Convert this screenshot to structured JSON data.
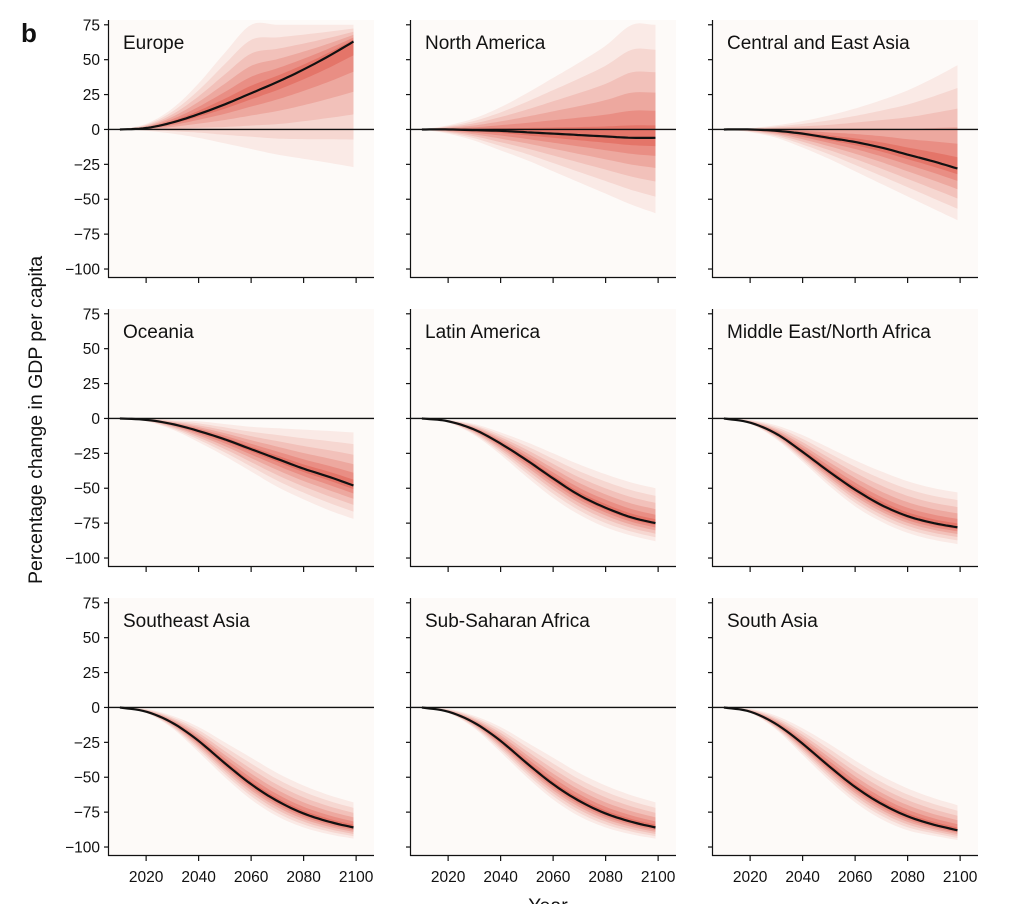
{
  "figure": {
    "panel_letter": "b",
    "ylabel": "Percentage change in GDP per capita",
    "xlabel": "Year"
  },
  "colors": {
    "band": "#d7301f",
    "median": "#111111",
    "panel_bg": "#fdfaf8",
    "zero_line": "#111111"
  },
  "chart_data": [
    {
      "type": "area",
      "title": "Europe",
      "x": [
        2010,
        2020,
        2030,
        2040,
        2050,
        2060,
        2070,
        2080,
        2090,
        2099
      ],
      "series": [
        {
          "role": "median",
          "values": [
            0,
            1,
            5,
            11,
            18,
            26,
            34,
            43,
            53,
            63
          ]
        },
        {
          "role": "lower",
          "values": [
            0,
            -1,
            -3,
            -6,
            -10,
            -14,
            -18,
            -21,
            -24,
            -27
          ]
        },
        {
          "role": "upper",
          "values": [
            0,
            4,
            15,
            33,
            55,
            75,
            75,
            75,
            75,
            75
          ]
        }
      ],
      "xlim": [
        2007,
        2103
      ],
      "ylim": [
        -105,
        77
      ],
      "xticks": [
        2020,
        2040,
        2060,
        2080,
        2100
      ],
      "yticks": [
        75,
        50,
        25,
        0,
        -25,
        -50,
        -75,
        -100
      ],
      "grid": false
    },
    {
      "type": "area",
      "title": "North America",
      "x": [
        2010,
        2020,
        2030,
        2040,
        2050,
        2060,
        2070,
        2080,
        2090,
        2099
      ],
      "series": [
        {
          "role": "median",
          "values": [
            0,
            0,
            -0.5,
            -1,
            -2,
            -3,
            -4,
            -5,
            -6,
            -6
          ]
        },
        {
          "role": "lower",
          "values": [
            0,
            -3,
            -8,
            -15,
            -22,
            -30,
            -38,
            -46,
            -54,
            -60
          ]
        },
        {
          "role": "upper",
          "values": [
            0,
            3,
            8,
            16,
            26,
            37,
            48,
            60,
            75,
            75
          ]
        }
      ],
      "xlim": [
        2007,
        2103
      ],
      "ylim": [
        -105,
        77
      ],
      "xticks": [
        2020,
        2040,
        2060,
        2080,
        2100
      ],
      "yticks": [
        75,
        50,
        25,
        0,
        -25,
        -50,
        -75,
        -100
      ],
      "grid": false
    },
    {
      "type": "area",
      "title": "Central and East Asia",
      "x": [
        2010,
        2020,
        2030,
        2040,
        2050,
        2060,
        2070,
        2080,
        2090,
        2099
      ],
      "series": [
        {
          "role": "median",
          "values": [
            0,
            0,
            -1,
            -3,
            -6,
            -9,
            -13,
            -18,
            -23,
            -28
          ]
        },
        {
          "role": "lower",
          "values": [
            0,
            -2,
            -6,
            -13,
            -21,
            -30,
            -39,
            -48,
            -57,
            -65
          ]
        },
        {
          "role": "upper",
          "values": [
            0,
            1,
            3,
            6,
            10,
            15,
            21,
            28,
            37,
            46
          ]
        }
      ],
      "xlim": [
        2007,
        2103
      ],
      "ylim": [
        -105,
        77
      ],
      "xticks": [
        2020,
        2040,
        2060,
        2080,
        2100
      ],
      "yticks": [
        75,
        50,
        25,
        0,
        -25,
        -50,
        -75,
        -100
      ],
      "grid": false
    },
    {
      "type": "area",
      "title": "Oceania",
      "x": [
        2010,
        2020,
        2030,
        2040,
        2050,
        2060,
        2070,
        2080,
        2090,
        2099
      ],
      "series": [
        {
          "role": "median",
          "values": [
            0,
            -1,
            -4,
            -9,
            -15,
            -22,
            -29,
            -36,
            -42,
            -48
          ]
        },
        {
          "role": "lower",
          "values": [
            0,
            -2,
            -8,
            -17,
            -27,
            -38,
            -49,
            -58,
            -66,
            -72
          ]
        },
        {
          "role": "upper",
          "values": [
            0,
            0,
            -1,
            -2,
            -4,
            -6,
            -7,
            -8,
            -9,
            -10
          ]
        }
      ],
      "xlim": [
        2007,
        2103
      ],
      "ylim": [
        -105,
        77
      ],
      "xticks": [
        2020,
        2040,
        2060,
        2080,
        2100
      ],
      "yticks": [
        75,
        50,
        25,
        0,
        -25,
        -50,
        -75,
        -100
      ],
      "grid": false
    },
    {
      "type": "area",
      "title": "Latin America",
      "x": [
        2010,
        2020,
        2030,
        2040,
        2050,
        2060,
        2070,
        2080,
        2090,
        2099
      ],
      "series": [
        {
          "role": "median",
          "values": [
            0,
            -2,
            -8,
            -18,
            -30,
            -43,
            -55,
            -64,
            -71,
            -75
          ]
        },
        {
          "role": "lower",
          "values": [
            0,
            -3,
            -12,
            -26,
            -42,
            -57,
            -69,
            -78,
            -84,
            -88
          ]
        },
        {
          "role": "upper",
          "values": [
            0,
            -1,
            -4,
            -10,
            -17,
            -25,
            -33,
            -40,
            -46,
            -50
          ]
        }
      ],
      "xlim": [
        2007,
        2103
      ],
      "ylim": [
        -105,
        77
      ],
      "xticks": [
        2020,
        2040,
        2060,
        2080,
        2100
      ],
      "yticks": [
        75,
        50,
        25,
        0,
        -25,
        -50,
        -75,
        -100
      ],
      "grid": false
    },
    {
      "type": "area",
      "title": "Middle East/North Africa",
      "x": [
        2010,
        2020,
        2030,
        2040,
        2050,
        2060,
        2070,
        2080,
        2090,
        2099
      ],
      "series": [
        {
          "role": "median",
          "values": [
            0,
            -3,
            -11,
            -24,
            -38,
            -51,
            -62,
            -70,
            -75,
            -78
          ]
        },
        {
          "role": "lower",
          "values": [
            0,
            -4,
            -15,
            -31,
            -48,
            -63,
            -74,
            -82,
            -87,
            -90
          ]
        },
        {
          "role": "upper",
          "values": [
            0,
            -1,
            -5,
            -12,
            -21,
            -30,
            -38,
            -45,
            -50,
            -53
          ]
        }
      ],
      "xlim": [
        2007,
        2103
      ],
      "ylim": [
        -105,
        77
      ],
      "xticks": [
        2020,
        2040,
        2060,
        2080,
        2100
      ],
      "yticks": [
        75,
        50,
        25,
        0,
        -25,
        -50,
        -75,
        -100
      ],
      "grid": false
    },
    {
      "type": "area",
      "title": "Southeast Asia",
      "x": [
        2010,
        2020,
        2030,
        2040,
        2050,
        2060,
        2070,
        2080,
        2090,
        2099
      ],
      "series": [
        {
          "role": "median",
          "values": [
            0,
            -3,
            -11,
            -24,
            -40,
            -55,
            -67,
            -76,
            -82,
            -86
          ]
        },
        {
          "role": "lower",
          "values": [
            0,
            -4,
            -15,
            -32,
            -50,
            -66,
            -78,
            -86,
            -91,
            -94
          ]
        },
        {
          "role": "upper",
          "values": [
            0,
            -1,
            -6,
            -14,
            -25,
            -36,
            -47,
            -56,
            -63,
            -68
          ]
        }
      ],
      "xlim": [
        2007,
        2103
      ],
      "ylim": [
        -105,
        77
      ],
      "xticks": [
        2020,
        2040,
        2060,
        2080,
        2100
      ],
      "yticks": [
        75,
        50,
        25,
        0,
        -25,
        -50,
        -75,
        -100
      ],
      "grid": false
    },
    {
      "type": "area",
      "title": "Sub-Saharan Africa",
      "x": [
        2010,
        2020,
        2030,
        2040,
        2050,
        2060,
        2070,
        2080,
        2090,
        2099
      ],
      "series": [
        {
          "role": "median",
          "values": [
            0,
            -3,
            -11,
            -24,
            -40,
            -55,
            -67,
            -76,
            -82,
            -86
          ]
        },
        {
          "role": "lower",
          "values": [
            0,
            -4,
            -15,
            -32,
            -50,
            -66,
            -78,
            -86,
            -91,
            -94
          ]
        },
        {
          "role": "upper",
          "values": [
            0,
            -1,
            -6,
            -14,
            -25,
            -36,
            -47,
            -56,
            -63,
            -68
          ]
        }
      ],
      "xlim": [
        2007,
        2103
      ],
      "ylim": [
        -105,
        77
      ],
      "xticks": [
        2020,
        2040,
        2060,
        2080,
        2100
      ],
      "yticks": [
        75,
        50,
        25,
        0,
        -25,
        -50,
        -75,
        -100
      ],
      "grid": false
    },
    {
      "type": "area",
      "title": "South Asia",
      "x": [
        2010,
        2020,
        2030,
        2040,
        2050,
        2060,
        2070,
        2080,
        2090,
        2099
      ],
      "series": [
        {
          "role": "median",
          "values": [
            0,
            -3,
            -12,
            -26,
            -42,
            -57,
            -69,
            -78,
            -84,
            -88
          ]
        },
        {
          "role": "lower",
          "values": [
            0,
            -4,
            -16,
            -34,
            -52,
            -68,
            -80,
            -88,
            -92,
            -95
          ]
        },
        {
          "role": "upper",
          "values": [
            0,
            -1,
            -6,
            -15,
            -26,
            -38,
            -49,
            -58,
            -65,
            -70
          ]
        }
      ],
      "xlim": [
        2007,
        2103
      ],
      "ylim": [
        -105,
        77
      ],
      "xticks": [
        2020,
        2040,
        2060,
        2080,
        2100
      ],
      "yticks": [
        75,
        50,
        25,
        0,
        -25,
        -50,
        -75,
        -100
      ],
      "grid": false
    }
  ]
}
